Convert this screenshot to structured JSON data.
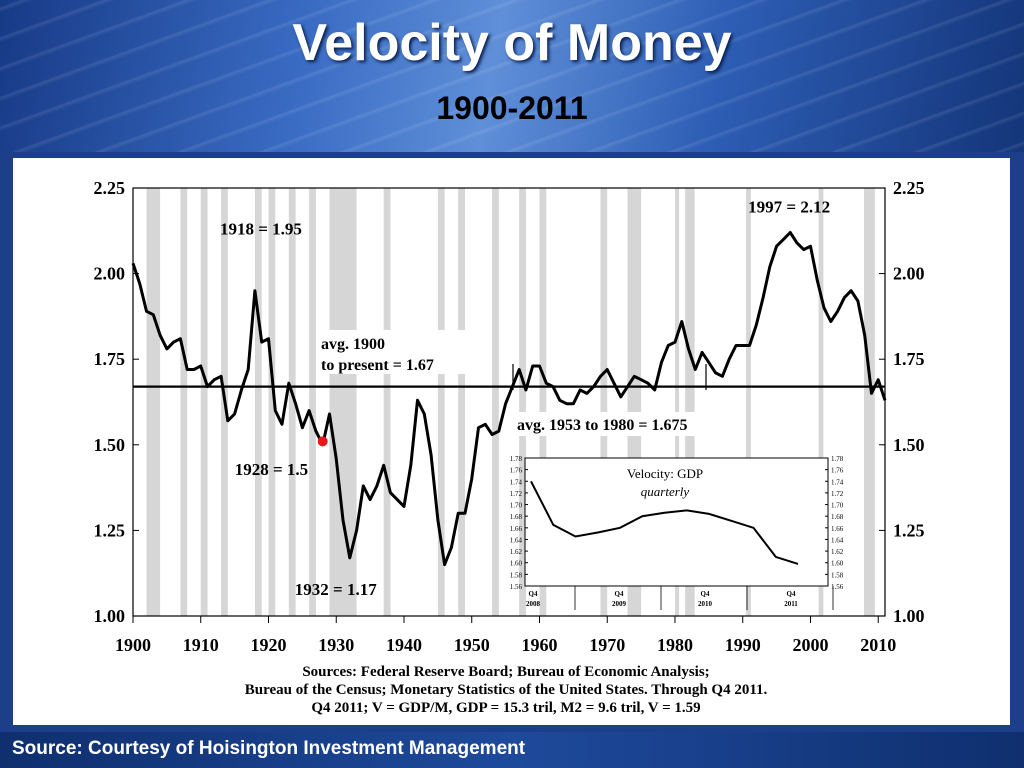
{
  "slide": {
    "title": "Velocity of Money",
    "subtitle": "1900-2011",
    "footer": "Source: Courtesy of Hoisington Investment Management"
  },
  "chart_data": [
    {
      "type": "line",
      "xlim": [
        1900,
        2011
      ],
      "ylim": [
        1.0,
        2.25
      ],
      "x_ticks": [
        "1900",
        "1910",
        "1920",
        "1930",
        "1940",
        "1950",
        "1960",
        "1970",
        "1980",
        "1990",
        "2000",
        "2010"
      ],
      "y_ticks": [
        "1.00",
        "1.25",
        "1.50",
        "1.75",
        "2.00",
        "2.25"
      ],
      "x": [
        1900,
        1901,
        1902,
        1903,
        1904,
        1905,
        1906,
        1907,
        1908,
        1909,
        1910,
        1911,
        1912,
        1913,
        1914,
        1915,
        1916,
        1917,
        1918,
        1919,
        1920,
        1921,
        1922,
        1923,
        1924,
        1925,
        1926,
        1927,
        1928,
        1929,
        1930,
        1931,
        1932,
        1933,
        1934,
        1935,
        1936,
        1937,
        1938,
        1939,
        1940,
        1941,
        1942,
        1943,
        1944,
        1945,
        1946,
        1947,
        1948,
        1949,
        1950,
        1951,
        1952,
        1953,
        1954,
        1955,
        1956,
        1957,
        1958,
        1959,
        1960,
        1961,
        1962,
        1963,
        1964,
        1965,
        1966,
        1967,
        1968,
        1969,
        1970,
        1971,
        1972,
        1973,
        1974,
        1975,
        1976,
        1977,
        1978,
        1979,
        1980,
        1981,
        1982,
        1983,
        1984,
        1985,
        1986,
        1987,
        1988,
        1989,
        1990,
        1991,
        1992,
        1993,
        1994,
        1995,
        1996,
        1997,
        1998,
        1999,
        2000,
        2001,
        2002,
        2003,
        2004,
        2005,
        2006,
        2007,
        2008,
        2009,
        2010,
        2011
      ],
      "y": [
        2.03,
        1.97,
        1.89,
        1.88,
        1.82,
        1.78,
        1.8,
        1.81,
        1.72,
        1.72,
        1.73,
        1.67,
        1.69,
        1.7,
        1.57,
        1.59,
        1.66,
        1.72,
        1.95,
        1.8,
        1.81,
        1.6,
        1.56,
        1.68,
        1.62,
        1.55,
        1.6,
        1.54,
        1.5,
        1.59,
        1.46,
        1.28,
        1.17,
        1.25,
        1.38,
        1.34,
        1.38,
        1.44,
        1.36,
        1.34,
        1.32,
        1.44,
        1.63,
        1.59,
        1.47,
        1.28,
        1.15,
        1.2,
        1.3,
        1.3,
        1.4,
        1.55,
        1.56,
        1.53,
        1.54,
        1.62,
        1.67,
        1.72,
        1.66,
        1.73,
        1.73,
        1.68,
        1.67,
        1.63,
        1.62,
        1.62,
        1.66,
        1.65,
        1.67,
        1.7,
        1.72,
        1.68,
        1.64,
        1.67,
        1.7,
        1.69,
        1.68,
        1.66,
        1.74,
        1.79,
        1.8,
        1.86,
        1.78,
        1.72,
        1.77,
        1.74,
        1.71,
        1.7,
        1.75,
        1.79,
        1.79,
        1.79,
        1.85,
        1.93,
        2.02,
        2.08,
        2.1,
        2.12,
        2.09,
        2.07,
        2.08,
        1.98,
        1.9,
        1.86,
        1.89,
        1.93,
        1.95,
        1.92,
        1.82,
        1.65,
        1.69,
        1.63
      ],
      "recessions": [
        [
          1902,
          1904
        ],
        [
          1907,
          1908
        ],
        [
          1910,
          1911
        ],
        [
          1913,
          1914
        ],
        [
          1918,
          1919
        ],
        [
          1920,
          1921
        ],
        [
          1923,
          1924
        ],
        [
          1926,
          1927
        ],
        [
          1929,
          1933
        ],
        [
          1937,
          1938
        ],
        [
          1945,
          1946
        ],
        [
          1948,
          1949
        ],
        [
          1953,
          1954
        ],
        [
          1957,
          1958
        ],
        [
          1960,
          1961
        ],
        [
          1969,
          1970
        ],
        [
          1973,
          1975
        ],
        [
          1980,
          1980.6
        ],
        [
          1981.5,
          1982.9
        ],
        [
          1990.5,
          1991.2
        ],
        [
          2001.2,
          2001.9
        ],
        [
          2007.9,
          2009.5
        ]
      ],
      "avg_line": {
        "value": 1.67,
        "label_line1": "avg. 1900",
        "label_line2": "to present = 1.67"
      },
      "avg_segment_label": "avg. 1953 to 1980 = 1.675",
      "annotations": [
        {
          "x": 1918,
          "y": 1.95,
          "label": "1918 = 1.95"
        },
        {
          "x": 1928,
          "y": 1.5,
          "label": "1928 = 1.5"
        },
        {
          "x": 1932,
          "y": 1.17,
          "label": "1932 = 1.17"
        },
        {
          "x": 1997,
          "y": 2.12,
          "label": "1997 = 2.12"
        }
      ],
      "highlight_point": {
        "x": 1928,
        "y": 1.51,
        "color": "#e51b1b"
      },
      "sources_line1": "Sources: Federal Reserve Board; Bureau of Economic Analysis;",
      "sources_line2": "Bureau of the Census; Monetary Statistics of the United States. Through Q4 2011.",
      "sources_line3": "Q4 2011; V = GDP/M, GDP = 15.3 tril, M2 = 9.6 tril, V = 1.59"
    },
    {
      "type": "line",
      "title": "Velocity: GDP",
      "subtitle": "quarterly",
      "ylim": [
        1.56,
        1.78
      ],
      "y_ticks": [
        "1.78",
        "1.76",
        "1.74",
        "1.72",
        "1.70",
        "1.68",
        "1.66",
        "1.64",
        "1.62",
        "1.60",
        "1.58",
        "1.56"
      ],
      "x_ticks": [
        {
          "q": "Q4",
          "year": "2008"
        },
        {
          "q": "Q4",
          "year": "2009"
        },
        {
          "q": "Q4",
          "year": "2010"
        },
        {
          "q": "Q4",
          "year": "2011"
        }
      ],
      "values": [
        1.74,
        1.665,
        1.645,
        1.652,
        1.66,
        1.68,
        1.686,
        1.69,
        1.684,
        1.672,
        1.66,
        1.61,
        1.598
      ]
    }
  ]
}
